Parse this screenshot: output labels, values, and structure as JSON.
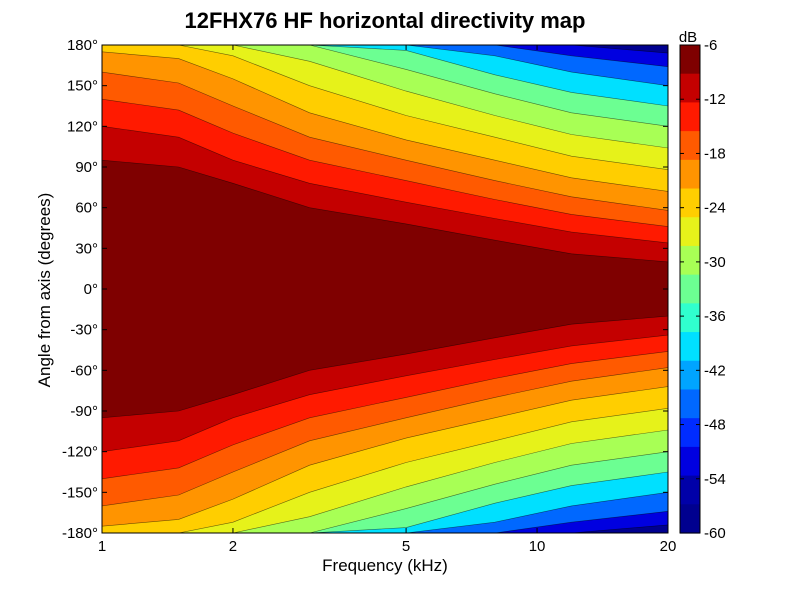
{
  "chart_data": {
    "type": "heatmap",
    "title": "12FHX76 HF horizontal directivity map",
    "xlabel": "Frequency (kHz)",
    "ylabel": "Angle from axis (degrees)",
    "x_scale": "log",
    "xlim": [
      1,
      20
    ],
    "ylim": [
      -180,
      180
    ],
    "x_ticks": [
      {
        "value": 1,
        "label": "1"
      },
      {
        "value": 2,
        "label": "2"
      },
      {
        "value": 5,
        "label": "5"
      },
      {
        "value": 10,
        "label": "10"
      },
      {
        "value": 20,
        "label": "20"
      }
    ],
    "y_ticks": [
      {
        "value": 180,
        "label": "180°"
      },
      {
        "value": 150,
        "label": "150°"
      },
      {
        "value": 120,
        "label": "120°"
      },
      {
        "value": 90,
        "label": "90°"
      },
      {
        "value": 60,
        "label": "60°"
      },
      {
        "value": 30,
        "label": "30°"
      },
      {
        "value": 0,
        "label": "0°"
      },
      {
        "value": -30,
        "label": "-30°"
      },
      {
        "value": -60,
        "label": "-60°"
      },
      {
        "value": -90,
        "label": "-90°"
      },
      {
        "value": -120,
        "label": "-120°"
      },
      {
        "value": -150,
        "label": "-150°"
      },
      {
        "value": -180,
        "label": "-180°"
      }
    ],
    "colorbar": {
      "label": "dB",
      "range": [
        -60,
        -6
      ],
      "ticks": [
        {
          "value": -6,
          "label": "-6"
        },
        {
          "value": -12,
          "label": "-12"
        },
        {
          "value": -18,
          "label": "-18"
        },
        {
          "value": -24,
          "label": "-24"
        },
        {
          "value": -30,
          "label": "-30"
        },
        {
          "value": -36,
          "label": "-36"
        },
        {
          "value": -42,
          "label": "-42"
        },
        {
          "value": -48,
          "label": "-48"
        },
        {
          "value": -54,
          "label": "-54"
        },
        {
          "value": -60,
          "label": "-60"
        }
      ],
      "contour_levels": [
        -6,
        -9,
        -12,
        -15,
        -18,
        -21,
        -24,
        -27,
        -30,
        -33,
        -36,
        -39,
        -42,
        -45,
        -48,
        -51,
        -54,
        -57,
        -60
      ],
      "colors": [
        "#7f0000",
        "#c40000",
        "#ff1a00",
        "#ff5a00",
        "#ff9400",
        "#ffce00",
        "#e6f21a",
        "#a8ff55",
        "#6cff92",
        "#30ffce",
        "#00e0ff",
        "#00a4ff",
        "#0068ff",
        "#002cff",
        "#0000e0",
        "#0000a8",
        "#00008f"
      ]
    },
    "isobands": [
      {
        "level": -6,
        "half_angle_deg": [
          95,
          90,
          78,
          60,
          48,
          36,
          26,
          20
        ]
      },
      {
        "level": -9,
        "half_angle_deg": [
          120,
          112,
          95,
          78,
          64,
          52,
          42,
          34
        ]
      },
      {
        "level": -12,
        "half_angle_deg": [
          140,
          132,
          115,
          95,
          80,
          66,
          55,
          46
        ]
      },
      {
        "level": -15,
        "half_angle_deg": [
          160,
          152,
          135,
          112,
          95,
          80,
          68,
          58
        ]
      },
      {
        "level": -18,
        "half_angle_deg": [
          175,
          170,
          155,
          130,
          110,
          95,
          82,
          72
        ]
      },
      {
        "level": -21,
        "half_angle_deg": [
          180,
          180,
          172,
          150,
          128,
          112,
          98,
          88
        ]
      },
      {
        "level": -24,
        "half_angle_deg": [
          180,
          180,
          180,
          168,
          146,
          128,
          114,
          104
        ]
      },
      {
        "level": -27,
        "half_angle_deg": [
          180,
          180,
          180,
          180,
          162,
          144,
          130,
          120
        ]
      },
      {
        "level": -30,
        "half_angle_deg": [
          180,
          180,
          180,
          180,
          176,
          158,
          145,
          135
        ]
      },
      {
        "level": -36,
        "half_angle_deg": [
          180,
          180,
          180,
          180,
          180,
          172,
          160,
          150
        ]
      },
      {
        "level": -42,
        "half_angle_deg": [
          180,
          180,
          180,
          180,
          180,
          180,
          172,
          164
        ]
      },
      {
        "level": -48,
        "half_angle_deg": [
          180,
          180,
          180,
          180,
          180,
          180,
          180,
          174
        ]
      }
    ],
    "isoband_frequencies_khz": [
      1,
      1.5,
      2,
      3,
      5,
      8,
      12,
      20
    ]
  }
}
